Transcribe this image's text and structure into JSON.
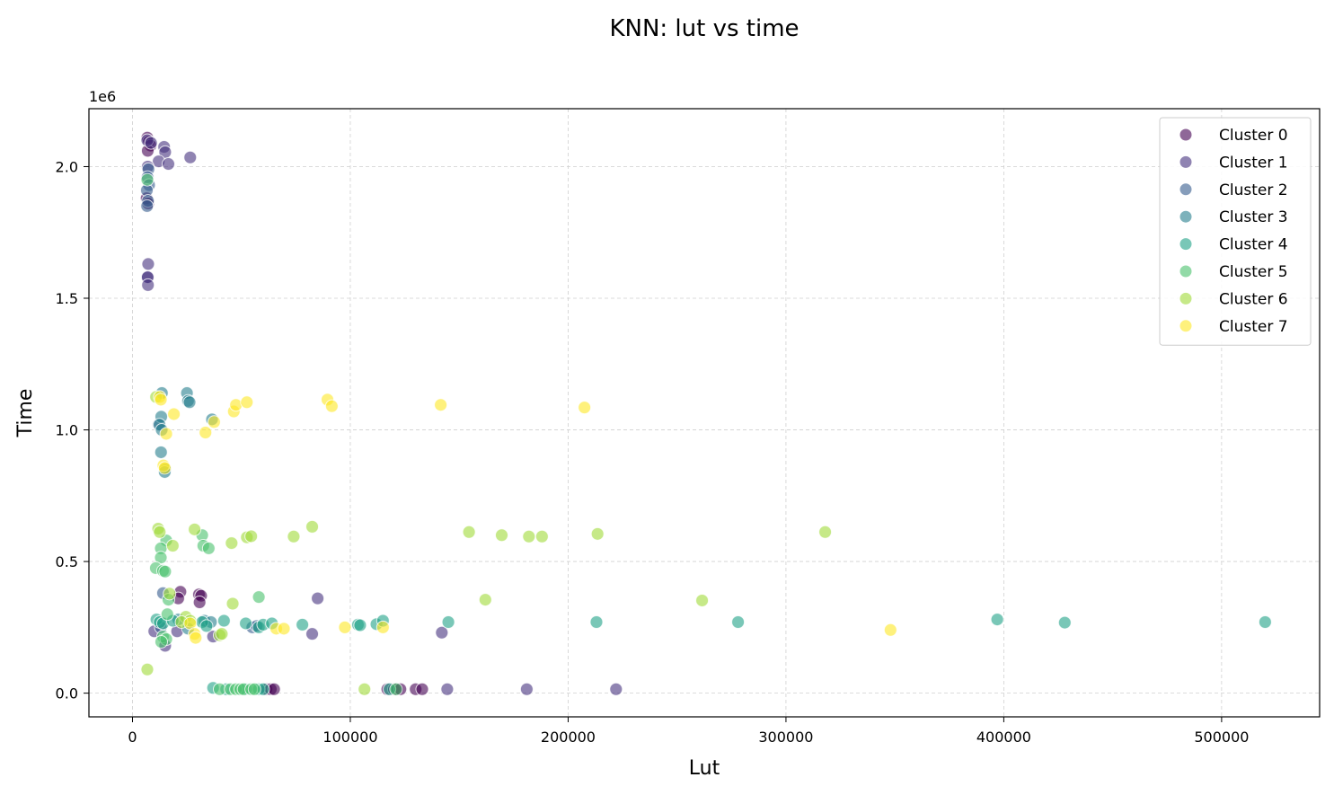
{
  "chart_data": {
    "type": "scatter",
    "title": "KNN: lut vs time",
    "xlabel": "Lut",
    "ylabel": "Time",
    "y_exponent_label": "1e6",
    "xlim": [
      -20000,
      545000
    ],
    "ylim": [
      -90000,
      2220000
    ],
    "xticks": [
      0,
      100000,
      200000,
      300000,
      400000,
      500000
    ],
    "xtick_labels": [
      "0",
      "100000",
      "200000",
      "300000",
      "400000",
      "500000"
    ],
    "yticks": [
      0,
      500000,
      1000000,
      1500000,
      2000000
    ],
    "ytick_labels": [
      "0.0",
      "0.5",
      "1.0",
      "1.5",
      "2.0"
    ],
    "grid": true,
    "legend_position": "top-right",
    "point_alpha": 0.6,
    "series": [
      {
        "name": "Cluster 0",
        "color": "#440154",
        "points": [
          [
            6800,
            2110000
          ],
          [
            7500,
            2095000
          ],
          [
            8300,
            2080000
          ],
          [
            7000,
            2060000
          ],
          [
            6500,
            1880000
          ],
          [
            7200,
            1860000
          ],
          [
            22000,
            385000
          ],
          [
            30500,
            375000
          ],
          [
            31500,
            370000
          ],
          [
            30800,
            345000
          ],
          [
            21000,
            360000
          ],
          [
            61500,
            15000
          ],
          [
            63500,
            15000
          ],
          [
            65000,
            15000
          ],
          [
            117000,
            15000
          ],
          [
            120000,
            15000
          ],
          [
            121500,
            15000
          ],
          [
            123000,
            15000
          ],
          [
            130000,
            15000
          ],
          [
            133000,
            15000
          ]
        ]
      },
      {
        "name": "Cluster 1",
        "color": "#46327e",
        "points": [
          [
            6800,
            2100000
          ],
          [
            8500,
            2090000
          ],
          [
            14500,
            2075000
          ],
          [
            15000,
            2055000
          ],
          [
            12000,
            2020000
          ],
          [
            16500,
            2010000
          ],
          [
            26500,
            2035000
          ],
          [
            7000,
            2000000
          ],
          [
            7200,
            1630000
          ],
          [
            6800,
            1580000
          ],
          [
            7000,
            1580000
          ],
          [
            7100,
            1550000
          ],
          [
            10000,
            235000
          ],
          [
            15000,
            180000
          ],
          [
            37000,
            215000
          ],
          [
            82500,
            225000
          ],
          [
            85000,
            360000
          ],
          [
            142000,
            230000
          ],
          [
            144500,
            15000
          ],
          [
            181000,
            15000
          ],
          [
            222000,
            15000
          ],
          [
            20500,
            235000
          ]
        ]
      },
      {
        "name": "Cluster 2",
        "color": "#365c8d",
        "points": [
          [
            7300,
            1990000
          ],
          [
            6900,
            1960000
          ],
          [
            7600,
            1930000
          ],
          [
            6600,
            1910000
          ],
          [
            7100,
            1870000
          ],
          [
            6700,
            1850000
          ],
          [
            14000,
            380000
          ],
          [
            55000,
            250000
          ],
          [
            57000,
            255000
          ],
          [
            12000,
            1020000
          ],
          [
            13000,
            250000
          ]
        ]
      },
      {
        "name": "Cluster 3",
        "color": "#277f8e",
        "points": [
          [
            13500,
            1140000
          ],
          [
            25000,
            1140000
          ],
          [
            25500,
            1110000
          ],
          [
            26200,
            1105000
          ],
          [
            36500,
            1040000
          ],
          [
            13200,
            1050000
          ],
          [
            12400,
            1020000
          ],
          [
            13400,
            1000000
          ],
          [
            13100,
            915000
          ],
          [
            15000,
            850000
          ],
          [
            14800,
            840000
          ],
          [
            21000,
            280000
          ],
          [
            33000,
            275000
          ],
          [
            36000,
            270000
          ],
          [
            25500,
            245000
          ]
        ]
      },
      {
        "name": "Cluster 4",
        "color": "#1fa187",
        "points": [
          [
            11000,
            280000
          ],
          [
            12500,
            270000
          ],
          [
            14000,
            265000
          ],
          [
            18500,
            275000
          ],
          [
            32000,
            270000
          ],
          [
            34000,
            255000
          ],
          [
            42000,
            275000
          ],
          [
            52000,
            265000
          ],
          [
            58000,
            250000
          ],
          [
            60000,
            260000
          ],
          [
            64000,
            265000
          ],
          [
            78000,
            260000
          ],
          [
            103500,
            260000
          ],
          [
            104500,
            258000
          ],
          [
            112000,
            262000
          ],
          [
            115000,
            275000
          ],
          [
            145000,
            270000
          ],
          [
            213000,
            270000
          ],
          [
            278000,
            270000
          ],
          [
            397000,
            280000
          ],
          [
            428000,
            268000
          ],
          [
            520000,
            270000
          ],
          [
            37000,
            20000
          ],
          [
            43000,
            15000
          ],
          [
            52000,
            15000
          ],
          [
            58000,
            15000
          ],
          [
            60000,
            15000
          ],
          [
            118000,
            15000
          ]
        ]
      },
      {
        "name": "Cluster 5",
        "color": "#4ac16d",
        "points": [
          [
            6800,
            1950000
          ],
          [
            15500,
            580000
          ],
          [
            13000,
            550000
          ],
          [
            32000,
            600000
          ],
          [
            32500,
            560000
          ],
          [
            35000,
            550000
          ],
          [
            13000,
            515000
          ],
          [
            10700,
            475000
          ],
          [
            14000,
            465000
          ],
          [
            15000,
            462000
          ],
          [
            58000,
            365000
          ],
          [
            16500,
            355000
          ],
          [
            16000,
            300000
          ],
          [
            14000,
            215000
          ],
          [
            15500,
            205000
          ],
          [
            13200,
            195000
          ],
          [
            40000,
            15000
          ],
          [
            45000,
            15000
          ],
          [
            47500,
            15000
          ],
          [
            49500,
            15000
          ],
          [
            51000,
            15000
          ],
          [
            54500,
            15000
          ],
          [
            56000,
            15000
          ],
          [
            121000,
            15000
          ]
        ]
      },
      {
        "name": "Cluster 6",
        "color": "#a0da39",
        "points": [
          [
            10800,
            1125000
          ],
          [
            11800,
            625000
          ],
          [
            12500,
            612000
          ],
          [
            18500,
            560000
          ],
          [
            28500,
            622000
          ],
          [
            45500,
            570000
          ],
          [
            52500,
            592000
          ],
          [
            54500,
            596000
          ],
          [
            74000,
            595000
          ],
          [
            82500,
            632000
          ],
          [
            154500,
            612000
          ],
          [
            169500,
            600000
          ],
          [
            182000,
            595000
          ],
          [
            188000,
            595000
          ],
          [
            213500,
            605000
          ],
          [
            318000,
            612000
          ],
          [
            162000,
            355000
          ],
          [
            261500,
            352000
          ],
          [
            46000,
            340000
          ],
          [
            17000,
            378000
          ],
          [
            24500,
            290000
          ],
          [
            26500,
            275000
          ],
          [
            22500,
            270000
          ],
          [
            40000,
            220000
          ],
          [
            41000,
            225000
          ],
          [
            6800,
            90000
          ],
          [
            106500,
            15000
          ]
        ]
      },
      {
        "name": "Cluster 7",
        "color": "#fde725",
        "points": [
          [
            12500,
            1125000
          ],
          [
            13000,
            1115000
          ],
          [
            19000,
            1060000
          ],
          [
            15500,
            985000
          ],
          [
            33500,
            990000
          ],
          [
            37500,
            1030000
          ],
          [
            46500,
            1070000
          ],
          [
            47500,
            1095000
          ],
          [
            52500,
            1105000
          ],
          [
            89500,
            1115000
          ],
          [
            91500,
            1090000
          ],
          [
            141500,
            1095000
          ],
          [
            207500,
            1085000
          ],
          [
            14200,
            865000
          ],
          [
            14800,
            855000
          ],
          [
            26500,
            265000
          ],
          [
            28500,
            225000
          ],
          [
            29000,
            210000
          ],
          [
            97500,
            250000
          ],
          [
            115000,
            250000
          ],
          [
            66000,
            245000
          ],
          [
            69500,
            245000
          ],
          [
            348000,
            240000
          ]
        ]
      }
    ]
  }
}
